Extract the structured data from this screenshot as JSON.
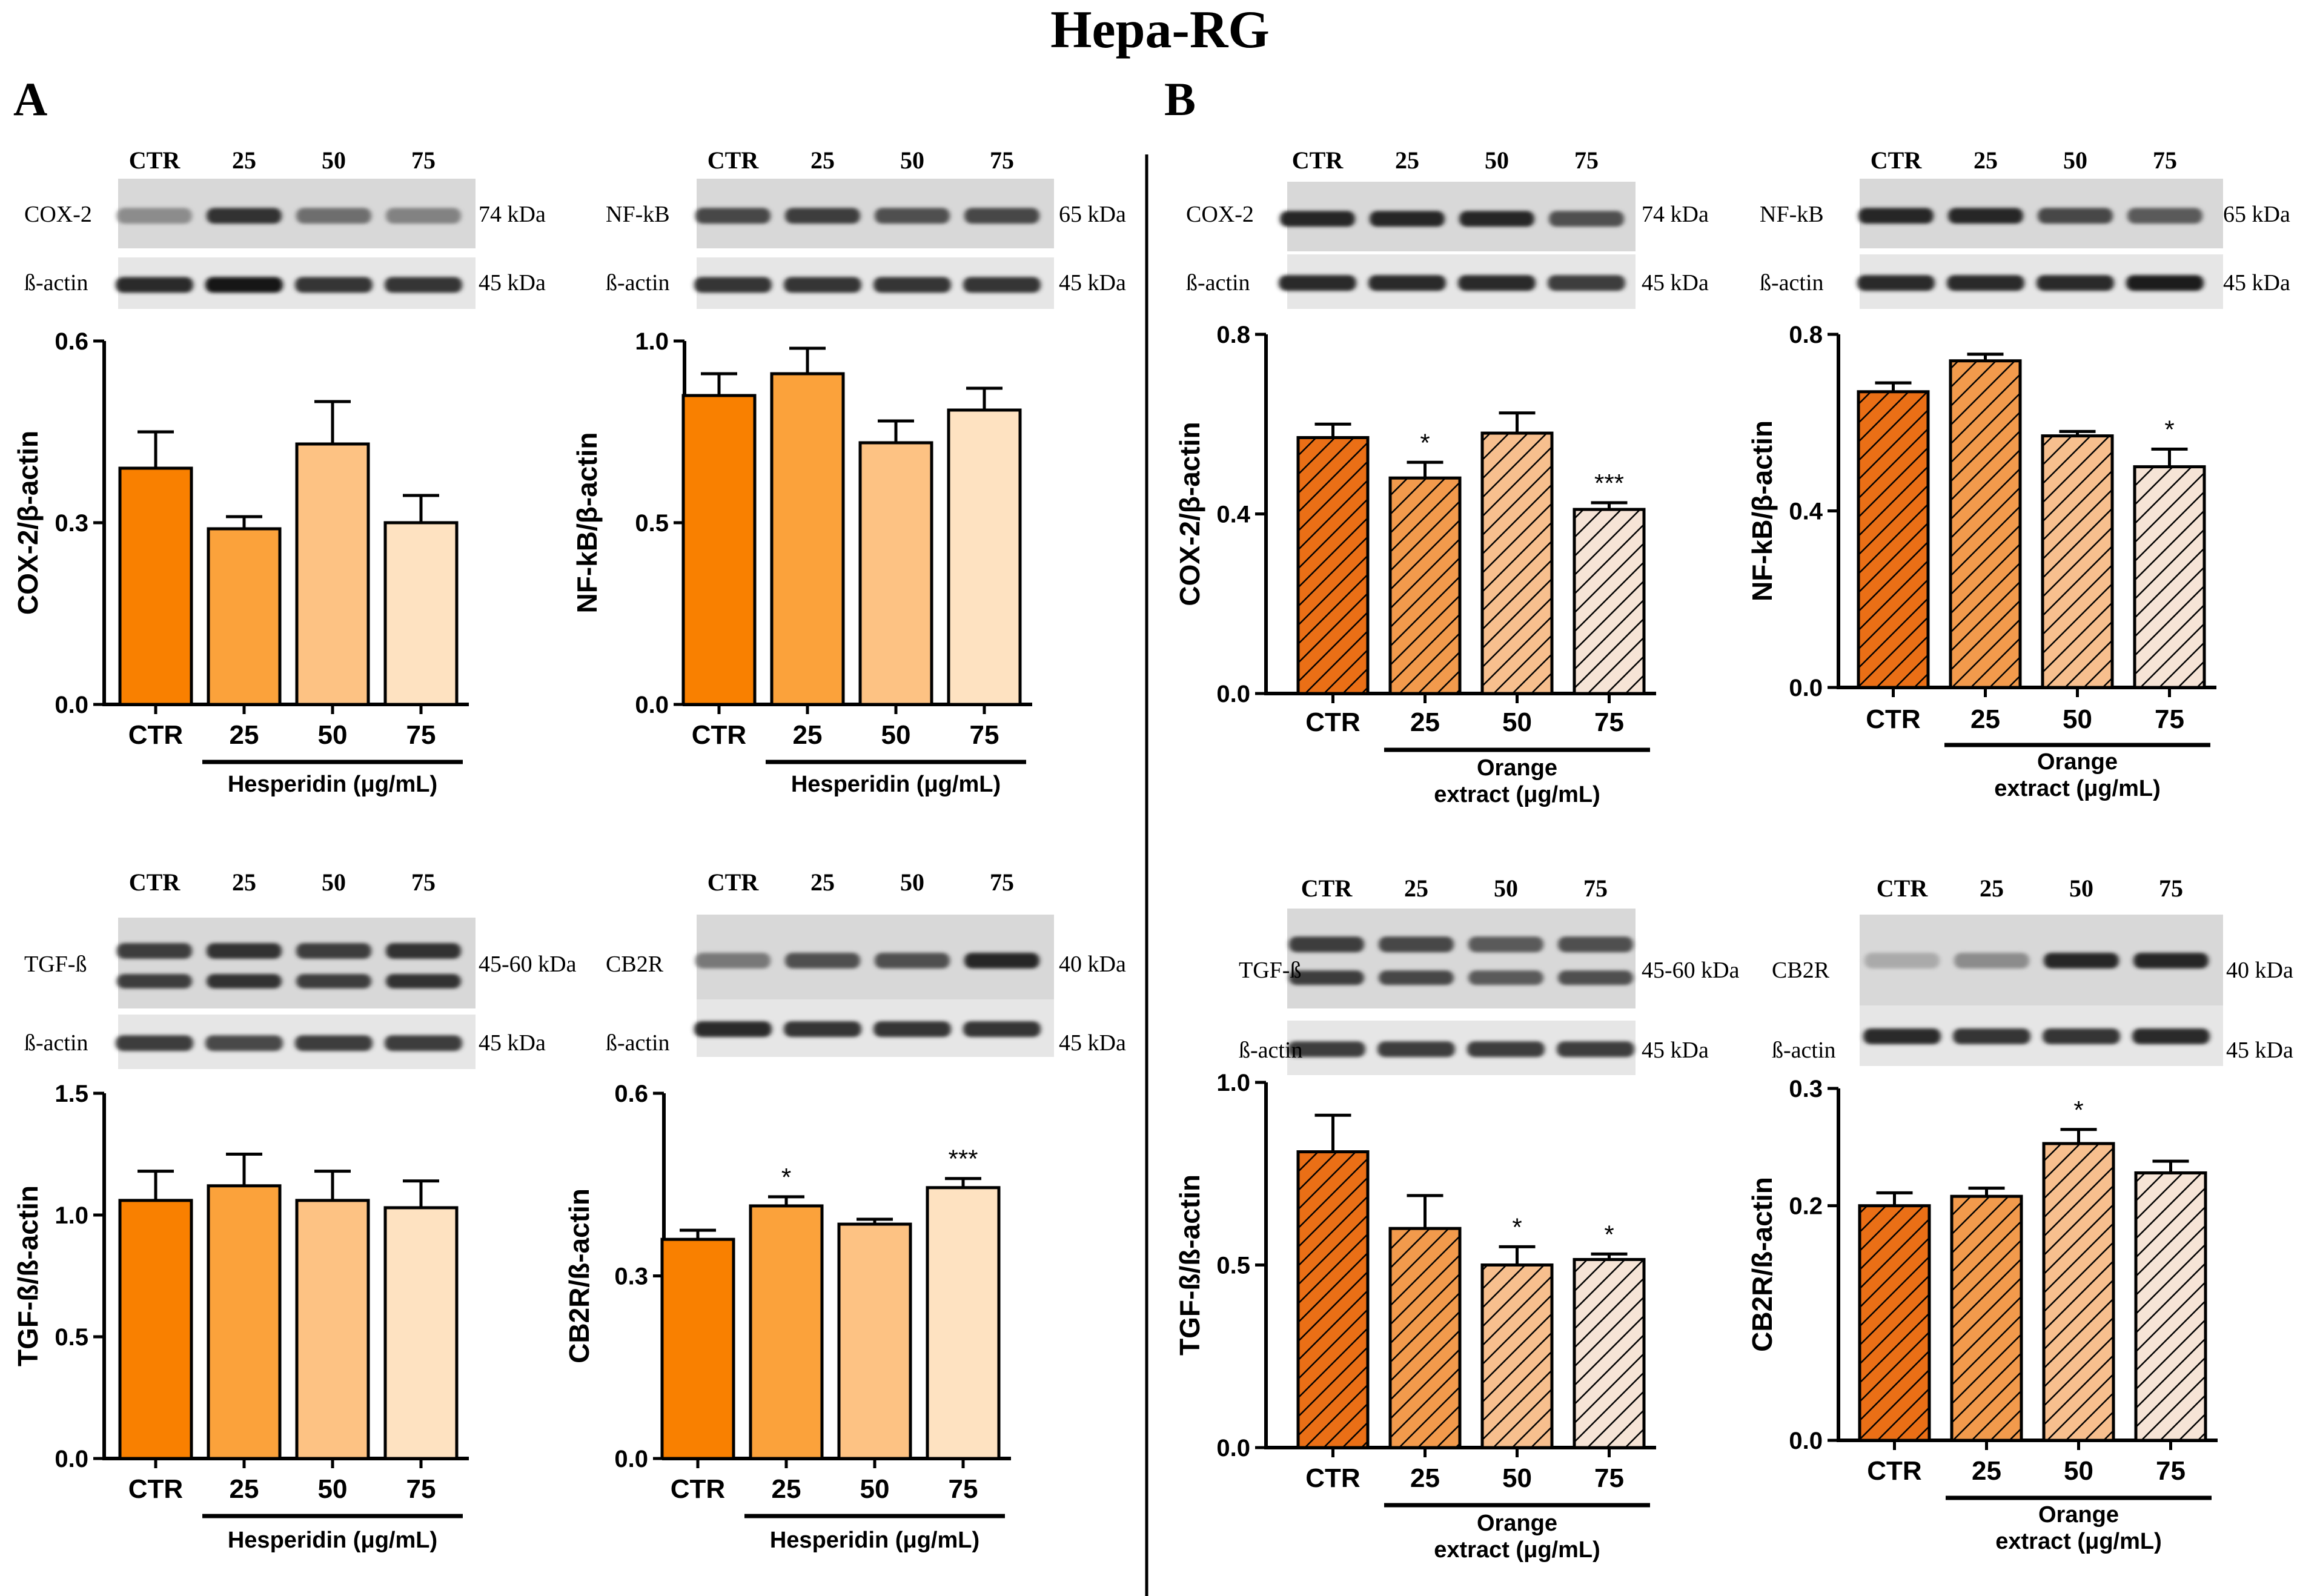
{
  "title": "Hepa-RG",
  "panels": {
    "A": "A",
    "B": "B"
  },
  "colors": {
    "hesperidin": [
      "#f98000",
      "#fba23b",
      "#fdc283",
      "#fee2c1"
    ],
    "orange": [
      "#ea6f16",
      "#f29a4c",
      "#f7bf8e",
      "#f6e4d6"
    ],
    "bar_stroke": "#000000",
    "pattern_line": "#000000"
  },
  "blots": [
    {
      "lanes": [
        "CTR",
        "25",
        "50",
        "75"
      ],
      "target": "COX-2",
      "target_kda": "74 kDa",
      "ref": "ß-actin",
      "ref_kda": "45 kDa",
      "target_int": [
        0.45,
        0.9,
        0.6,
        0.5
      ],
      "ref_int": [
        0.9,
        1.0,
        0.85,
        0.85
      ]
    },
    {
      "lanes": [
        "CTR",
        "25",
        "50",
        "75"
      ],
      "target": "NF-kB",
      "target_kda": "65 kDa",
      "ref": "ß-actin",
      "ref_kda": "45 kDa",
      "target_int": [
        0.8,
        0.85,
        0.75,
        0.8
      ],
      "ref_int": [
        0.85,
        0.85,
        0.85,
        0.85
      ]
    },
    {
      "lanes": [
        "CTR",
        "25",
        "50",
        "75"
      ],
      "target": "COX-2",
      "target_kda": "74 kDa",
      "ref": "ß-actin",
      "ref_kda": "45 kDa",
      "target_int": [
        0.95,
        0.95,
        0.95,
        0.75
      ],
      "ref_int": [
        0.9,
        0.9,
        0.9,
        0.8
      ]
    },
    {
      "lanes": [
        "CTR",
        "25",
        "50",
        "75"
      ],
      "target": "NF-kB",
      "target_kda": "65 kDa",
      "ref": "ß-actin",
      "ref_kda": "45 kDa",
      "target_int": [
        0.95,
        0.95,
        0.8,
        0.7
      ],
      "ref_int": [
        0.9,
        0.9,
        0.9,
        0.95
      ]
    },
    {
      "lanes": [
        "CTR",
        "25",
        "50",
        "75"
      ],
      "target": "TGF-ß",
      "target_kda": "45-60 kDa",
      "ref": "ß-actin",
      "ref_kda": "45 kDa",
      "target_int": [
        0.85,
        0.9,
        0.85,
        0.9
      ],
      "ref_int": [
        0.8,
        0.75,
        0.8,
        0.8
      ]
    },
    {
      "lanes": [
        "CTR",
        "25",
        "50",
        "75"
      ],
      "target": "CB2R",
      "target_kda": "40 kDa",
      "ref": "ß-actin",
      "ref_kda": "45 kDa",
      "target_int": [
        0.55,
        0.75,
        0.75,
        0.95
      ],
      "ref_int": [
        0.9,
        0.85,
        0.85,
        0.85
      ]
    },
    {
      "lanes": [
        "CTR",
        "25",
        "50",
        "75"
      ],
      "target": "TGF-ß",
      "target_kda": "45-60 kDa",
      "ref": "ß-actin",
      "ref_kda": "45 kDa",
      "target_int": [
        0.85,
        0.8,
        0.7,
        0.75
      ],
      "ref_int": [
        0.8,
        0.8,
        0.8,
        0.8
      ]
    },
    {
      "lanes": [
        "CTR",
        "25",
        "50",
        "75"
      ],
      "target": "CB2R",
      "target_kda": "40 kDa",
      "ref": "ß-actin",
      "ref_kda": "45 kDa",
      "target_int": [
        0.3,
        0.45,
        0.95,
        0.95
      ],
      "ref_int": [
        0.9,
        0.85,
        0.85,
        0.9
      ]
    }
  ],
  "chart_data": [
    {
      "type": "bar",
      "panel": "A",
      "categories": [
        "CTR",
        "25",
        "50",
        "75"
      ],
      "values": [
        0.39,
        0.29,
        0.43,
        0.3
      ],
      "errors": [
        0.06,
        0.02,
        0.07,
        0.045
      ],
      "significance": [
        "",
        "",
        "",
        ""
      ],
      "ylabel": "COX-2/β-actin",
      "yticks": [
        "0.0",
        "0.3",
        "0.6"
      ],
      "ylim": [
        0,
        0.6
      ],
      "xlabel": "Hesperidin (μg/mL)",
      "xlabel_lines": [
        "Hesperidin (μg/mL)"
      ],
      "palette": "hesperidin",
      "hatched": false
    },
    {
      "type": "bar",
      "panel": "A",
      "categories": [
        "CTR",
        "25",
        "50",
        "75"
      ],
      "values": [
        0.85,
        0.91,
        0.72,
        0.81
      ],
      "errors": [
        0.06,
        0.07,
        0.06,
        0.06
      ],
      "significance": [
        "",
        "",
        "",
        ""
      ],
      "ylabel": "NF-kB/β-actin",
      "yticks": [
        "0.0",
        "0.5",
        "1.0"
      ],
      "ylim": [
        0,
        1.0
      ],
      "xlabel": "Hesperidin (μg/mL)",
      "xlabel_lines": [
        "Hesperidin (μg/mL)"
      ],
      "palette": "hesperidin",
      "hatched": false
    },
    {
      "type": "bar",
      "panel": "B",
      "categories": [
        "CTR",
        "25",
        "50",
        "75"
      ],
      "values": [
        0.57,
        0.48,
        0.58,
        0.41
      ],
      "errors": [
        0.03,
        0.035,
        0.045,
        0.015
      ],
      "significance": [
        "",
        "*",
        "",
        "***"
      ],
      "ylabel": "COX-2/β-actin",
      "yticks": [
        "0.0",
        "0.4",
        "0.8"
      ],
      "ylim": [
        0,
        0.8
      ],
      "xlabel": "Orange extract (μg/mL)",
      "xlabel_lines": [
        "Orange",
        "extract (μg/mL)"
      ],
      "palette": "orange",
      "hatched": true
    },
    {
      "type": "bar",
      "panel": "B",
      "categories": [
        "CTR",
        "25",
        "50",
        "75"
      ],
      "values": [
        0.67,
        0.74,
        0.57,
        0.5
      ],
      "errors": [
        0.02,
        0.015,
        0.01,
        0.04
      ],
      "significance": [
        "",
        "",
        "",
        "*"
      ],
      "ylabel": "NF-kB/β-actin",
      "yticks": [
        "0.0",
        "0.4",
        "0.8"
      ],
      "ylim": [
        0,
        0.8
      ],
      "xlabel": "Orange extract (μg/mL)",
      "xlabel_lines": [
        "Orange",
        "extract (μg/mL)"
      ],
      "palette": "orange",
      "hatched": true
    },
    {
      "type": "bar",
      "panel": "A",
      "categories": [
        "CTR",
        "25",
        "50",
        "75"
      ],
      "values": [
        1.06,
        1.12,
        1.06,
        1.03
      ],
      "errors": [
        0.12,
        0.13,
        0.12,
        0.11
      ],
      "significance": [
        "",
        "",
        "",
        ""
      ],
      "ylabel": "TGF-ß/ß-actin",
      "yticks": [
        "0.0",
        "0.5",
        "1.0",
        "1.5"
      ],
      "ylim": [
        0,
        1.5
      ],
      "xlabel": "Hesperidin (μg/mL)",
      "xlabel_lines": [
        "Hesperidin (μg/mL)"
      ],
      "palette": "hesperidin",
      "hatched": false
    },
    {
      "type": "bar",
      "panel": "A",
      "categories": [
        "CTR",
        "25",
        "50",
        "75"
      ],
      "values": [
        0.36,
        0.415,
        0.385,
        0.445
      ],
      "errors": [
        0.015,
        0.015,
        0.008,
        0.015
      ],
      "significance": [
        "",
        "*",
        "",
        "***"
      ],
      "ylabel": "CB2R/ß-actin",
      "yticks": [
        "0.0",
        "0.3",
        "0.6"
      ],
      "ylim": [
        0,
        0.6
      ],
      "xlabel": "Hesperidin (μg/mL)",
      "xlabel_lines": [
        "Hesperidin (μg/mL)"
      ],
      "palette": "hesperidin",
      "hatched": false
    },
    {
      "type": "bar",
      "panel": "B",
      "categories": [
        "CTR",
        "25",
        "50",
        "75"
      ],
      "values": [
        0.81,
        0.6,
        0.5,
        0.515
      ],
      "errors": [
        0.1,
        0.09,
        0.05,
        0.015
      ],
      "significance": [
        "",
        "",
        "*",
        "*"
      ],
      "ylabel": "TGF-ß/ß-actin",
      "yticks": [
        "0.0",
        "0.5",
        "1.0"
      ],
      "ylim": [
        0,
        1.0
      ],
      "xlabel": "Orange extract (μg/mL)",
      "xlabel_lines": [
        "Orange",
        "extract (μg/mL)"
      ],
      "palette": "orange",
      "hatched": true
    },
    {
      "type": "bar",
      "panel": "B",
      "categories": [
        "CTR",
        "25",
        "50",
        "75"
      ],
      "values": [
        0.2,
        0.208,
        0.253,
        0.228
      ],
      "errors": [
        0.011,
        0.007,
        0.012,
        0.01
      ],
      "significance": [
        "",
        "",
        "*",
        ""
      ],
      "ylabel": "CB2R/ß-actin",
      "yticks": [
        "0.0",
        "0.2",
        "0.3"
      ],
      "ylim": [
        0,
        0.3
      ],
      "xlabel": "Orange extract (μg/mL)",
      "xlabel_lines": [
        "Orange",
        "extract (μg/mL)"
      ],
      "palette": "orange",
      "hatched": true
    }
  ]
}
